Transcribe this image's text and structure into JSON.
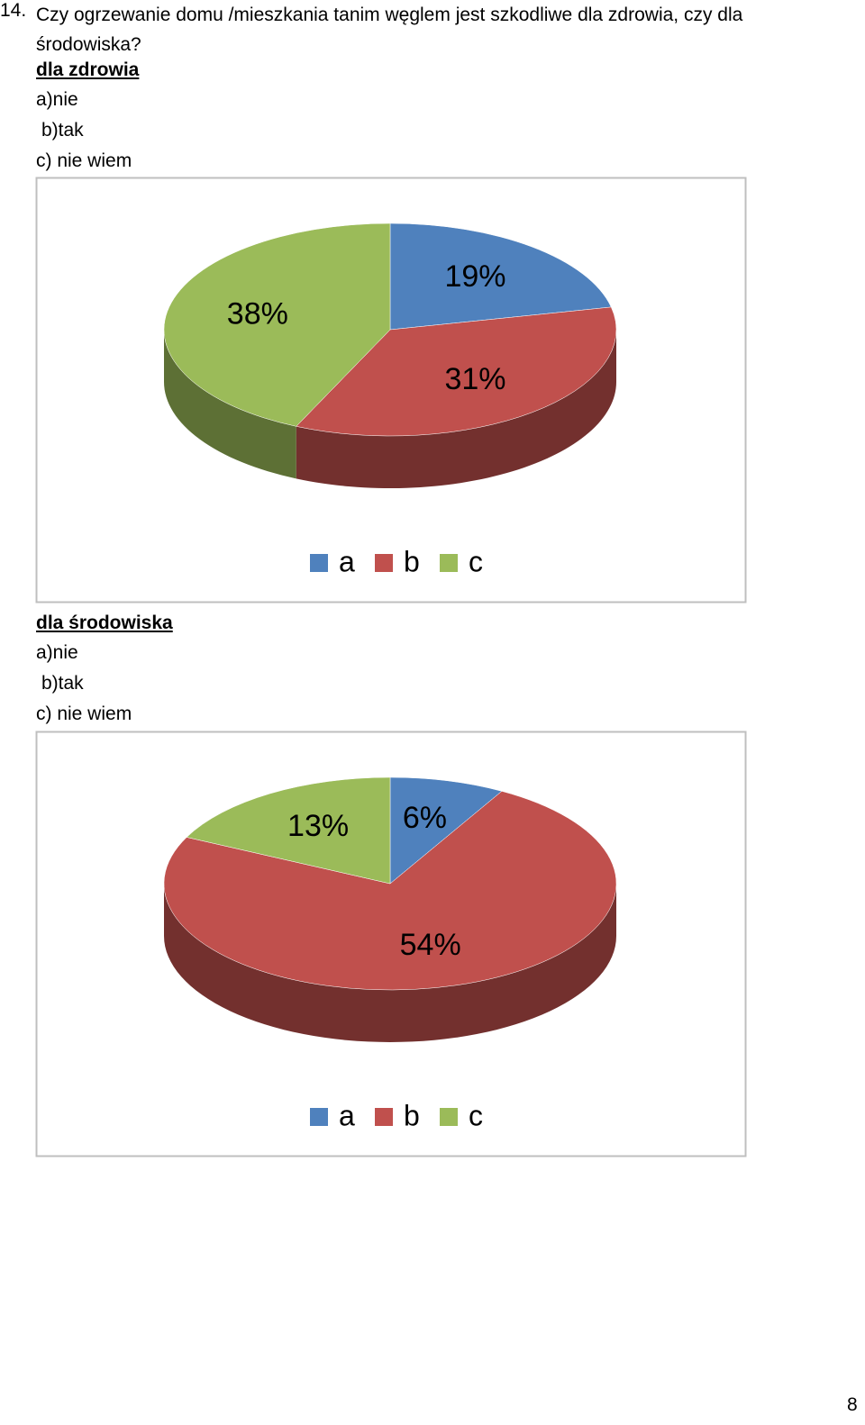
{
  "question": {
    "number": "14.",
    "text": "Czy ogrzewanie domu /mieszkania tanim węglem jest szkodliwe dla zdrowia, czy dla środowiska?"
  },
  "sections": [
    {
      "heading": "dla zdrowia",
      "options": [
        "a)nie",
        "b)tak",
        "c) nie wiem"
      ]
    },
    {
      "heading": "dla środowiska",
      "options": [
        "a)nie",
        "b)tak",
        "c) nie wiem"
      ]
    }
  ],
  "chart_data": [
    {
      "type": "pie",
      "categories": [
        "a",
        "b",
        "c"
      ],
      "values": [
        19,
        31,
        38
      ],
      "value_labels": [
        "19%",
        "31%",
        "38%"
      ],
      "colors": [
        "#4f81bd",
        "#c0504d",
        "#9bbb59"
      ],
      "legend": "bottom"
    },
    {
      "type": "pie",
      "categories": [
        "a",
        "b",
        "c"
      ],
      "values": [
        6,
        54,
        13
      ],
      "value_labels": [
        "6%",
        "54%",
        "13%"
      ],
      "colors": [
        "#4f81bd",
        "#c0504d",
        "#9bbb59"
      ],
      "legend": "bottom"
    }
  ],
  "page_number": "8"
}
